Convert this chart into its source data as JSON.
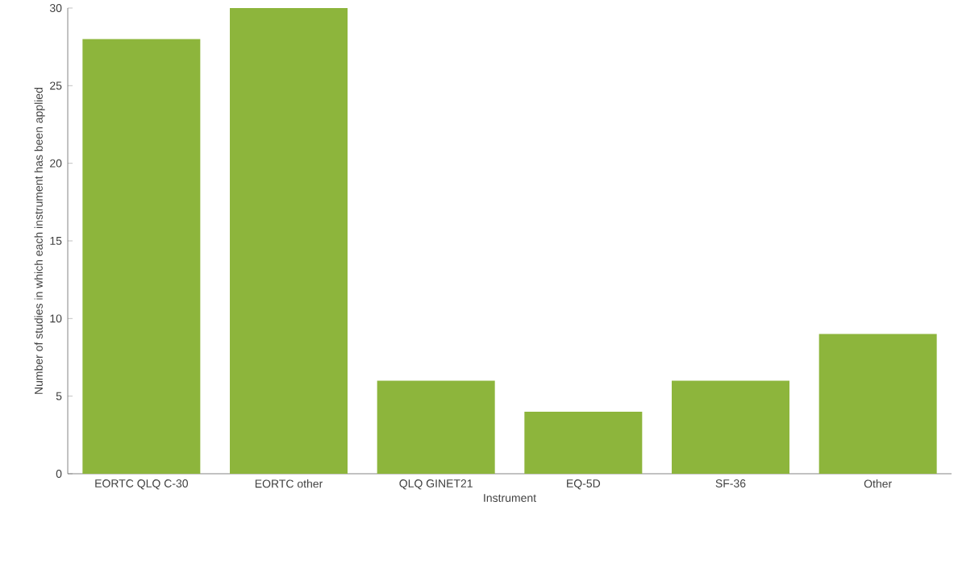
{
  "chart_data": {
    "type": "bar",
    "xlabel": "Instrument",
    "ylabel": "Number of studies in which each instrument has been applied",
    "categories": [
      "EORTC QLQ C-30",
      "EORTC other",
      "QLQ GINET21",
      "EQ-5D",
      "SF-36",
      "Other"
    ],
    "values": [
      28,
      30,
      6,
      4,
      6,
      9
    ],
    "color": "#8db53c",
    "ylim": [
      0,
      30
    ],
    "yticks": [
      0,
      5,
      10,
      15,
      20,
      25,
      30
    ],
    "grid": false
  }
}
